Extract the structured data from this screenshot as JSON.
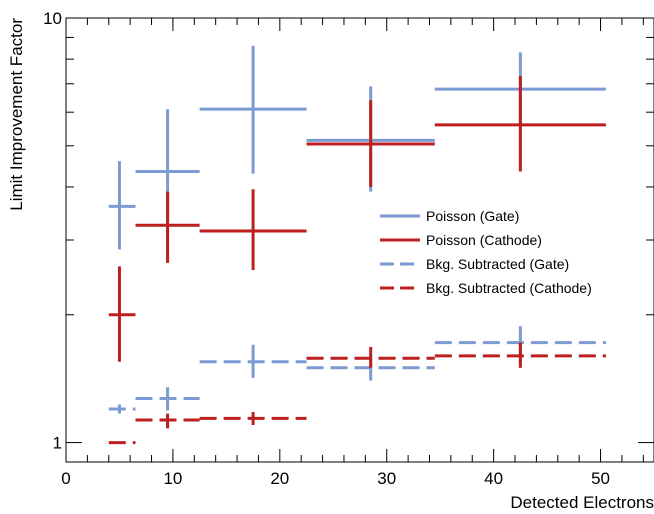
{
  "chart_data": {
    "type": "scatter",
    "xlabel": "Detected Electrons",
    "ylabel": "Limit Improvement Factor",
    "xlim": [
      0,
      55
    ],
    "ylim": [
      0.9,
      10
    ],
    "yscale": "log",
    "x_ticks": [
      0,
      10,
      20,
      30,
      40,
      50
    ],
    "x_tick_labels": [
      "0",
      "10",
      "20",
      "30",
      "40",
      "50"
    ],
    "y_ticks": [
      1,
      10
    ],
    "y_tick_labels": [
      "1",
      "10"
    ],
    "grid": false,
    "legend_position": "right",
    "series": [
      {
        "name": "Poisson (Gate)",
        "color": "#7b9bd2",
        "dash": "solid",
        "points": [
          {
            "x": 5,
            "xlo": 4,
            "xhi": 6.5,
            "y": 3.6,
            "ylo": 2.85,
            "yhi": 4.6
          },
          {
            "x": 9.5,
            "xlo": 6.5,
            "xhi": 12.5,
            "y": 4.35,
            "ylo": 3.3,
            "yhi": 6.1
          },
          {
            "x": 17.5,
            "xlo": 12.5,
            "xhi": 22.5,
            "y": 6.1,
            "ylo": 4.3,
            "yhi": 8.6
          },
          {
            "x": 28.5,
            "xlo": 22.5,
            "xhi": 34.5,
            "y": 5.15,
            "ylo": 3.9,
            "yhi": 6.9
          },
          {
            "x": 42.5,
            "xlo": 34.5,
            "xhi": 50.5,
            "y": 6.8,
            "ylo": 5.6,
            "yhi": 8.3
          }
        ]
      },
      {
        "name": "Poisson (Cathode)",
        "color": "#bf1e1e",
        "dash": "solid",
        "points": [
          {
            "x": 5,
            "xlo": 4,
            "xhi": 6.5,
            "y": 2.0,
            "ylo": 1.55,
            "yhi": 2.6
          },
          {
            "x": 9.5,
            "xlo": 6.5,
            "xhi": 12.5,
            "y": 3.25,
            "ylo": 2.65,
            "yhi": 3.9
          },
          {
            "x": 17.5,
            "xlo": 12.5,
            "xhi": 22.5,
            "y": 3.15,
            "ylo": 2.55,
            "yhi": 3.95
          },
          {
            "x": 28.5,
            "xlo": 22.5,
            "xhi": 34.5,
            "y": 5.05,
            "ylo": 4.0,
            "yhi": 6.4
          },
          {
            "x": 42.5,
            "xlo": 34.5,
            "xhi": 50.5,
            "y": 5.6,
            "ylo": 4.35,
            "yhi": 7.3
          }
        ]
      },
      {
        "name": "Bkg. Subtracted (Gate)",
        "color": "#7b9bd2",
        "dash": "dashed",
        "points": [
          {
            "x": 5,
            "xlo": 4,
            "xhi": 6.5,
            "y": 1.2,
            "ylo": 1.17,
            "yhi": 1.23
          },
          {
            "x": 9.5,
            "xlo": 6.5,
            "xhi": 12.5,
            "y": 1.27,
            "ylo": 1.19,
            "yhi": 1.35
          },
          {
            "x": 17.5,
            "xlo": 12.5,
            "xhi": 22.5,
            "y": 1.55,
            "ylo": 1.42,
            "yhi": 1.7
          },
          {
            "x": 28.5,
            "xlo": 22.5,
            "xhi": 34.5,
            "y": 1.5,
            "ylo": 1.4,
            "yhi": 1.62
          },
          {
            "x": 42.5,
            "xlo": 34.5,
            "xhi": 50.5,
            "y": 1.72,
            "ylo": 1.55,
            "yhi": 1.88
          }
        ]
      },
      {
        "name": "Bkg. Subtracted (Cathode)",
        "color": "#bf1e1e",
        "dash": "dashed",
        "points": [
          {
            "x": 5,
            "xlo": 4,
            "xhi": 6.5,
            "y": 1.0,
            "ylo": 1.0,
            "yhi": 1.0
          },
          {
            "x": 9.5,
            "xlo": 6.5,
            "xhi": 12.5,
            "y": 1.13,
            "ylo": 1.08,
            "yhi": 1.17
          },
          {
            "x": 17.5,
            "xlo": 12.5,
            "xhi": 22.5,
            "y": 1.14,
            "ylo": 1.1,
            "yhi": 1.18
          },
          {
            "x": 28.5,
            "xlo": 22.5,
            "xhi": 34.5,
            "y": 1.58,
            "ylo": 1.5,
            "yhi": 1.68
          },
          {
            "x": 42.5,
            "xlo": 34.5,
            "xhi": 50.5,
            "y": 1.6,
            "ylo": 1.5,
            "yhi": 1.72
          }
        ]
      }
    ]
  }
}
